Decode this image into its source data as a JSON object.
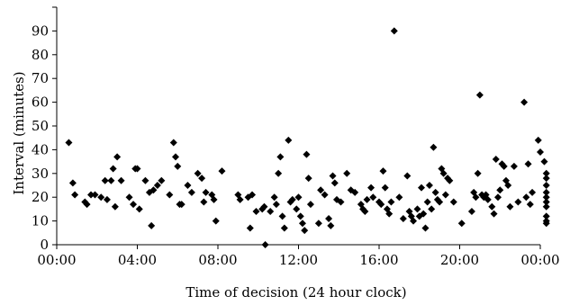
{
  "chart_data": {
    "type": "scatter",
    "title": "",
    "xlabel": "Time of decision (24 hour clock)",
    "ylabel": "Interval (minutes)",
    "xlim": [
      0,
      24
    ],
    "ylim": [
      0,
      100
    ],
    "grid": false,
    "legend": "none",
    "marker": "diamond",
    "marker_color": "#000000",
    "x_ticks": [
      {
        "value": 0,
        "label": "00:00"
      },
      {
        "value": 4,
        "label": "04:00"
      },
      {
        "value": 8,
        "label": "08:00"
      },
      {
        "value": 12,
        "label": "12:00"
      },
      {
        "value": 16,
        "label": "16:00"
      },
      {
        "value": 20,
        "label": "20:00"
      },
      {
        "value": 24,
        "label": "00:00"
      }
    ],
    "y_ticks": [
      {
        "value": 0,
        "label": "0"
      },
      {
        "value": 10,
        "label": "10"
      },
      {
        "value": 20,
        "label": "20"
      },
      {
        "value": 30,
        "label": "30"
      },
      {
        "value": 40,
        "label": "40"
      },
      {
        "value": 50,
        "label": "50"
      },
      {
        "value": 60,
        "label": "60"
      },
      {
        "value": 70,
        "label": "70"
      },
      {
        "value": 80,
        "label": "80"
      },
      {
        "value": 90,
        "label": "90"
      }
    ],
    "points": [
      [
        0.6,
        43
      ],
      [
        0.8,
        26
      ],
      [
        0.9,
        21
      ],
      [
        1.4,
        18
      ],
      [
        1.5,
        17
      ],
      [
        1.7,
        21
      ],
      [
        1.9,
        21
      ],
      [
        2.2,
        20
      ],
      [
        2.4,
        27
      ],
      [
        2.5,
        19
      ],
      [
        2.7,
        27
      ],
      [
        2.8,
        32
      ],
      [
        2.9,
        16
      ],
      [
        3.0,
        37
      ],
      [
        3.2,
        27
      ],
      [
        3.6,
        20
      ],
      [
        3.8,
        17
      ],
      [
        3.9,
        32
      ],
      [
        4.0,
        32
      ],
      [
        4.1,
        15
      ],
      [
        4.4,
        27
      ],
      [
        4.6,
        22
      ],
      [
        4.7,
        8
      ],
      [
        4.8,
        23
      ],
      [
        5.0,
        25
      ],
      [
        5.2,
        27
      ],
      [
        5.6,
        21
      ],
      [
        5.8,
        43
      ],
      [
        5.9,
        37
      ],
      [
        6.0,
        33
      ],
      [
        6.1,
        17
      ],
      [
        6.2,
        17
      ],
      [
        6.5,
        25
      ],
      [
        6.7,
        22
      ],
      [
        7.0,
        30
      ],
      [
        7.2,
        28
      ],
      [
        7.3,
        18
      ],
      [
        7.4,
        22
      ],
      [
        7.7,
        21
      ],
      [
        7.8,
        19
      ],
      [
        7.9,
        10
      ],
      [
        8.2,
        31
      ],
      [
        9.0,
        21
      ],
      [
        9.1,
        19
      ],
      [
        9.5,
        20
      ],
      [
        9.7,
        21
      ],
      [
        9.6,
        7
      ],
      [
        9.9,
        14
      ],
      [
        10.2,
        15
      ],
      [
        10.3,
        16
      ],
      [
        10.35,
        0
      ],
      [
        10.6,
        14
      ],
      [
        10.8,
        20
      ],
      [
        10.9,
        17
      ],
      [
        11.0,
        30
      ],
      [
        11.1,
        37
      ],
      [
        11.2,
        12
      ],
      [
        11.3,
        7
      ],
      [
        11.5,
        44
      ],
      [
        11.6,
        18
      ],
      [
        11.7,
        19
      ],
      [
        11.9,
        15
      ],
      [
        12.0,
        20
      ],
      [
        12.1,
        12
      ],
      [
        12.2,
        9
      ],
      [
        12.3,
        6
      ],
      [
        12.4,
        38
      ],
      [
        12.5,
        28
      ],
      [
        12.6,
        17
      ],
      [
        13.0,
        9
      ],
      [
        13.1,
        23
      ],
      [
        13.3,
        21
      ],
      [
        13.5,
        11
      ],
      [
        13.6,
        8
      ],
      [
        13.7,
        29
      ],
      [
        13.8,
        26
      ],
      [
        13.9,
        19
      ],
      [
        14.1,
        18
      ],
      [
        14.4,
        30
      ],
      [
        14.6,
        23
      ],
      [
        14.8,
        22
      ],
      [
        15.1,
        17
      ],
      [
        15.2,
        15
      ],
      [
        15.3,
        14
      ],
      [
        15.4,
        19
      ],
      [
        15.6,
        24
      ],
      [
        15.7,
        20
      ],
      [
        16.0,
        18
      ],
      [
        16.1,
        17
      ],
      [
        16.2,
        31
      ],
      [
        16.3,
        24
      ],
      [
        16.4,
        15
      ],
      [
        16.5,
        13
      ],
      [
        16.6,
        18
      ],
      [
        16.75,
        90
      ],
      [
        17.0,
        20
      ],
      [
        17.2,
        11
      ],
      [
        17.4,
        29
      ],
      [
        17.5,
        14
      ],
      [
        17.6,
        12
      ],
      [
        17.7,
        10
      ],
      [
        17.9,
        15
      ],
      [
        18.0,
        12
      ],
      [
        18.1,
        24
      ],
      [
        18.2,
        13
      ],
      [
        18.3,
        7
      ],
      [
        18.4,
        18
      ],
      [
        18.5,
        25
      ],
      [
        18.6,
        15
      ],
      [
        18.7,
        41
      ],
      [
        18.8,
        22
      ],
      [
        18.9,
        19
      ],
      [
        19.0,
        18
      ],
      [
        19.1,
        32
      ],
      [
        19.2,
        30
      ],
      [
        19.3,
        21
      ],
      [
        19.4,
        28
      ],
      [
        19.5,
        27
      ],
      [
        19.7,
        18
      ],
      [
        20.1,
        9
      ],
      [
        20.6,
        14
      ],
      [
        20.7,
        22
      ],
      [
        20.8,
        20
      ],
      [
        20.9,
        30
      ],
      [
        21.0,
        63
      ],
      [
        21.1,
        21
      ],
      [
        21.2,
        20
      ],
      [
        21.3,
        21
      ],
      [
        21.4,
        19
      ],
      [
        21.6,
        16
      ],
      [
        21.7,
        13
      ],
      [
        21.8,
        36
      ],
      [
        21.9,
        20
      ],
      [
        22.0,
        23
      ],
      [
        22.1,
        34
      ],
      [
        22.2,
        33
      ],
      [
        22.3,
        27
      ],
      [
        22.4,
        25
      ],
      [
        22.5,
        16
      ],
      [
        22.7,
        33
      ],
      [
        22.9,
        18
      ],
      [
        23.2,
        60
      ],
      [
        23.3,
        20
      ],
      [
        23.4,
        34
      ],
      [
        23.5,
        17
      ],
      [
        23.6,
        22
      ],
      [
        23.9,
        44
      ],
      [
        24.0,
        39
      ],
      [
        24.2,
        35
      ],
      [
        24.3,
        30
      ],
      [
        24.3,
        28
      ],
      [
        24.3,
        25
      ],
      [
        24.3,
        22
      ],
      [
        24.3,
        20
      ],
      [
        24.3,
        18
      ],
      [
        24.3,
        16
      ],
      [
        24.3,
        12
      ],
      [
        24.3,
        10
      ],
      [
        24.3,
        9
      ]
    ]
  }
}
